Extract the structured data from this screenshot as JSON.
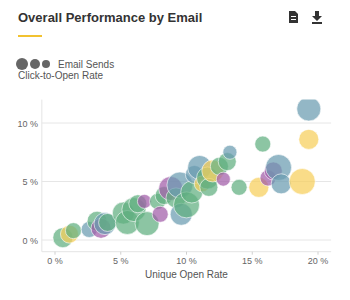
{
  "chart_data": {
    "type": "scatter",
    "title": "Overall Performance by Email",
    "x_label": "Unique Open Rate",
    "y_label": "Click-to-Open Rate",
    "grid": true,
    "xlim": [
      -1,
      21
    ],
    "ylim": [
      -1,
      12
    ],
    "xticks": [
      {
        "value": 0,
        "label": "0 %"
      },
      {
        "value": 5,
        "label": "5 %"
      },
      {
        "value": 10,
        "label": "10 %"
      },
      {
        "value": 15,
        "label": "15 %"
      },
      {
        "value": 20,
        "label": "20 %"
      }
    ],
    "yticks": [
      {
        "value": 0,
        "label": "0 %"
      },
      {
        "value": 5,
        "label": "5 %"
      },
      {
        "value": 10,
        "label": "10 %"
      }
    ],
    "series": [
      {
        "name": "Email Sends",
        "x": [
          0.6,
          1.1,
          1.4,
          2.6,
          3.2,
          3.5,
          3.8,
          4.0,
          5.2,
          5.5,
          6.0,
          6.3,
          6.8,
          7.0,
          7.8,
          8.0,
          8.3,
          8.8,
          9.2,
          9.6,
          9.5,
          10.0,
          10.4,
          10.6,
          11.0,
          11.2,
          11.6,
          11.7,
          12.0,
          12.5,
          12.8,
          13.1,
          13.3,
          14.0,
          15.5,
          15.8,
          16.2,
          16.6,
          17.0,
          17.2,
          18.8,
          19.3,
          19.3
        ],
        "values": [
          0.2,
          0.5,
          0.8,
          0.9,
          1.6,
          1.0,
          1.4,
          1.5,
          2.3,
          1.5,
          2.6,
          3.1,
          3.3,
          1.4,
          3.3,
          2.2,
          3.8,
          4.4,
          3.6,
          2.2,
          4.7,
          3.0,
          4.1,
          5.6,
          6.2,
          4.8,
          5.3,
          4.5,
          5.9,
          6.3,
          5.2,
          6.7,
          7.5,
          4.5,
          4.5,
          8.2,
          5.3,
          5.9,
          6.2,
          4.8,
          5.0,
          8.6,
          11.2
        ],
        "sizes": [
          2000,
          1620,
          1280,
          1280,
          2000,
          2000,
          2420,
          1620,
          2420,
          2880,
          2880,
          1620,
          980,
          2880,
          1280,
          1280,
          1620,
          2880,
          2000,
          2420,
          3380,
          3380,
          2420,
          1620,
          2880,
          1280,
          2420,
          1620,
          2420,
          1620,
          980,
          1620,
          980,
          1280,
          2000,
          1280,
          1280,
          1620,
          3380,
          2000,
          3380,
          2000,
          2880
        ],
        "colors": [
          "#5fae80",
          "#f7cf5a",
          "#5fae80",
          "#6a9bb0",
          "#5fae80",
          "#a15ca8",
          "#6a9bb0",
          "#5fae80",
          "#5fae80",
          "#5fae80",
          "#5fae80",
          "#5fae80",
          "#a15ca8",
          "#5fae80",
          "#5fae80",
          "#a15ca8",
          "#5fae80",
          "#a15ca8",
          "#5fae80",
          "#6a9bb0",
          "#6a9bb0",
          "#5fae80",
          "#5fae80",
          "#6a9bb0",
          "#6a9bb0",
          "#f7cf5a",
          "#5fae80",
          "#5fae80",
          "#f7cf5a",
          "#5fae80",
          "#a15ca8",
          "#5fae80",
          "#6a9bb0",
          "#5fae80",
          "#f7cf5a",
          "#5fae80",
          "#a15ca8",
          "#a15ca8",
          "#6a9bb0",
          "#6a9bb0",
          "#f7cf5a",
          "#f7cf5a",
          "#6a9bb0"
        ]
      }
    ]
  }
}
